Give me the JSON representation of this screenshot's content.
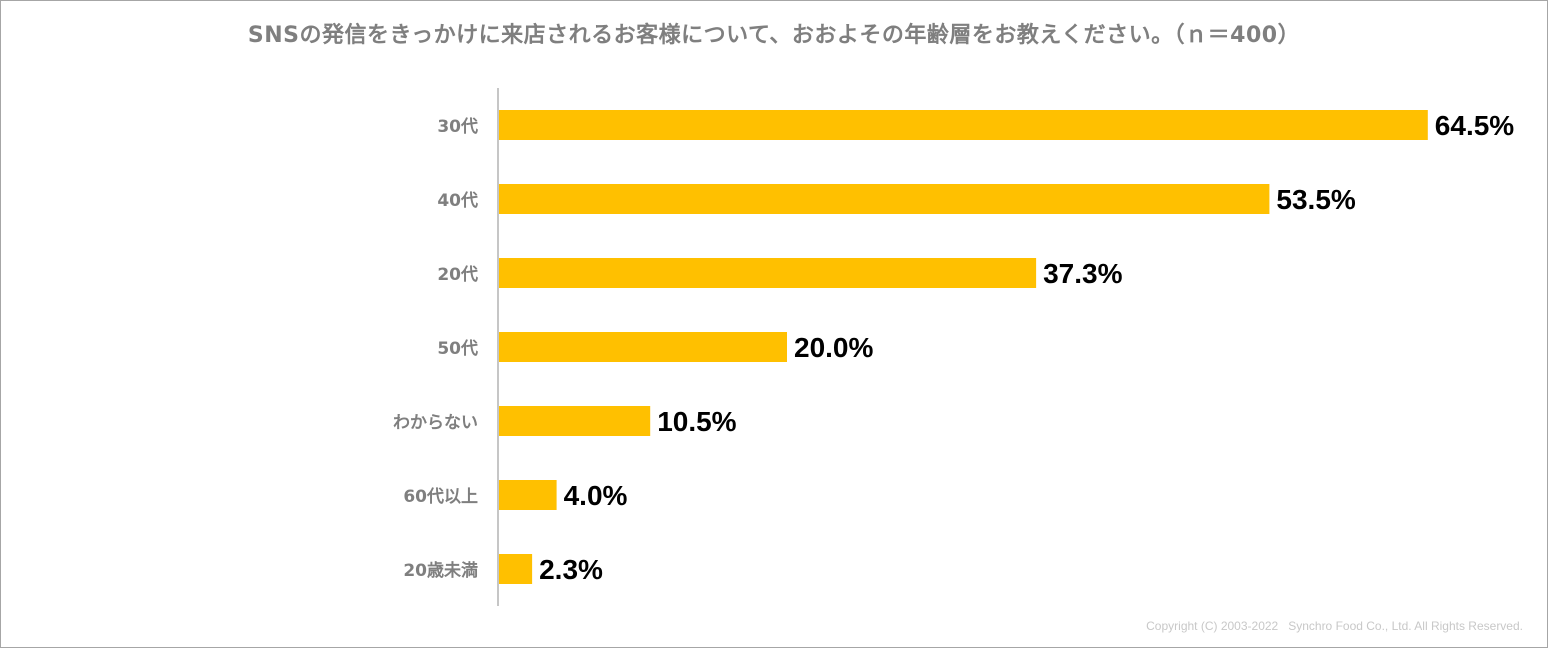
{
  "chart_data": {
    "type": "bar",
    "orientation": "horizontal",
    "title": "SNSの発信をきっかけに来店されるお客様について、おおよその年齢層をお教えください。（ｎ＝400）",
    "categories": [
      "30代",
      "40代",
      "20代",
      "50代",
      "わからない",
      "60代以上",
      "20歳未満"
    ],
    "values": [
      64.5,
      53.5,
      37.3,
      20.0,
      10.5,
      4.0,
      2.3
    ],
    "value_labels": [
      "64.5%",
      "53.5%",
      "37.3%",
      "20.0%",
      "10.5%",
      "4.0%",
      "2.3%"
    ],
    "unit": "%",
    "xlim": [
      0,
      65
    ],
    "bar_color": "#FFC000",
    "grid": false,
    "legend": "none"
  },
  "footer": {
    "copyright": "Copyright (C) 2003-2022   Synchro Food Co., Ltd. All Rights Reserved."
  }
}
